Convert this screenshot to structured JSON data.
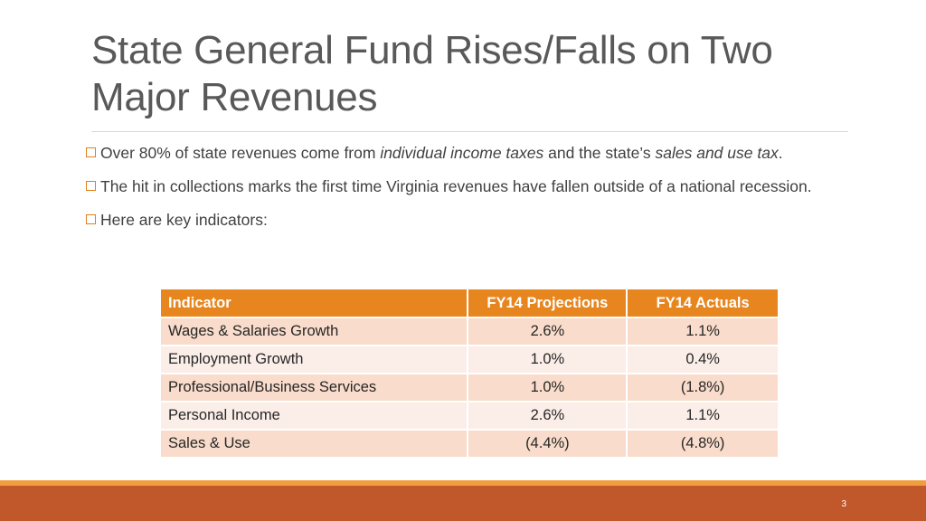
{
  "slide": {
    "title": "State General Fund Rises/Falls on Two Major Revenues",
    "page_number": "3"
  },
  "bullets": [
    {
      "icon": "checkbox-bullet-icon",
      "parts": [
        {
          "text": "Over 80% of state revenues come from ",
          "italic": false
        },
        {
          "text": "individual income taxes",
          "italic": true
        },
        {
          "text": " and the state’s ",
          "italic": false
        },
        {
          "text": "sales and use tax",
          "italic": true
        },
        {
          "text": ".",
          "italic": false
        }
      ]
    },
    {
      "icon": "checkbox-bullet-icon",
      "parts": [
        {
          "text": "The hit in collections marks the first time Virginia revenues have fallen outside of a national recession.",
          "italic": false
        }
      ]
    },
    {
      "icon": "checkbox-bullet-icon",
      "parts": [
        {
          "text": "Here are key indicators:",
          "italic": false
        }
      ]
    }
  ],
  "table": {
    "headers": [
      "Indicator",
      "FY14 Projections",
      "FY14 Actuals"
    ],
    "rows": [
      [
        "Wages & Salaries Growth",
        "2.6%",
        "1.1%"
      ],
      [
        "Employment Growth",
        "1.0%",
        "0.4%"
      ],
      [
        "Professional/Business Services",
        "1.0%",
        "(1.8%)"
      ],
      [
        "Personal Income",
        "2.6%",
        "1.1%"
      ],
      [
        "Sales & Use",
        "(4.4%)",
        "(4.8%)"
      ]
    ]
  },
  "colors": {
    "accent": "#e7861f",
    "row_dark": "#f9dccb",
    "row_light": "#fbeee8",
    "footer": "#c0582c"
  }
}
